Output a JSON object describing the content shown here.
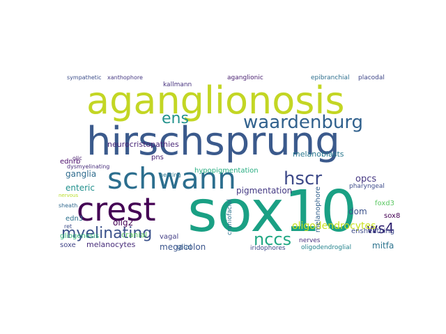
{
  "wordcloud": {
    "words": [
      {
        "text": "hirschsprung",
        "color": "#3b5a8c"
      },
      {
        "text": "aganglionosis",
        "color": "#c3d624"
      },
      {
        "text": "sox10",
        "color": "#1aa084"
      },
      {
        "text": "schwann",
        "color": "#2c6e8e"
      },
      {
        "text": "crest",
        "color": "#440154"
      },
      {
        "text": "waardenburg",
        "color": "#31618d"
      },
      {
        "text": "myelinating",
        "color": "#3b528b"
      },
      {
        "text": "hscr",
        "color": "#3e4a89"
      },
      {
        "text": "nccs",
        "color": "#22a884"
      },
      {
        "text": "ens",
        "color": "#22928c"
      },
      {
        "text": "ws4",
        "color": "#2d1e6e"
      },
      {
        "text": "oligodendrocytes",
        "color": "#c8e020"
      },
      {
        "text": "neurocristopathies",
        "color": "#482677"
      },
      {
        "text": "melanoblasts",
        "color": "#2a788e"
      },
      {
        "text": "ganglia",
        "color": "#2f6c8e"
      },
      {
        "text": "enteric",
        "color": "#21908d"
      },
      {
        "text": "pigmentation",
        "color": "#443983"
      },
      {
        "text": "megacolon",
        "color": "#3a548c"
      },
      {
        "text": "melanocytes",
        "color": "#472c7a"
      },
      {
        "text": "opcs",
        "color": "#453781"
      },
      {
        "text": "dom",
        "color": "#3b518b"
      },
      {
        "text": "mitfa",
        "color": "#2c738e"
      },
      {
        "text": "olig2",
        "color": "#440154"
      },
      {
        "text": "cranial",
        "color": "#5ec962"
      },
      {
        "text": "sox8",
        "color": "#440154"
      },
      {
        "text": "ednrb",
        "color": "#4a0c6b"
      },
      {
        "text": "edn3",
        "color": "#2c718e"
      },
      {
        "text": "glial",
        "color": "#35608d"
      },
      {
        "text": "soxe",
        "color": "#414487"
      },
      {
        "text": "iridophores",
        "color": "#3e4989"
      },
      {
        "text": "pns",
        "color": "#482475"
      },
      {
        "text": "hypopigmentation",
        "color": "#27ad81"
      },
      {
        "text": "foxd3",
        "color": "#5cc863"
      },
      {
        "text": "ensheathing",
        "color": "#3e4a89"
      },
      {
        "text": "gliogenesis",
        "color": "#35b779"
      },
      {
        "text": "oligodendroglial",
        "color": "#25848e"
      },
      {
        "text": "melanophore",
        "color": "#34618d"
      },
      {
        "text": "craniofacial",
        "color": "#2c728e"
      },
      {
        "text": "vagal",
        "color": "#433e85"
      },
      {
        "text": "pharyngeal",
        "color": "#3e4c8a"
      },
      {
        "text": "dysmyelinating",
        "color": "#472d7b"
      },
      {
        "text": "aganglionic",
        "color": "#481f70"
      },
      {
        "text": "epibranchial",
        "color": "#2e6f8e"
      },
      {
        "text": "placodal",
        "color": "#3f4788"
      },
      {
        "text": "kallmann",
        "color": "#46327e"
      },
      {
        "text": "sympathetic",
        "color": "#3d4e8a"
      },
      {
        "text": "xanthophore",
        "color": "#453882"
      },
      {
        "text": "olic",
        "color": "#481b6d"
      },
      {
        "text": "hearing",
        "color": "#2a768e"
      },
      {
        "text": "nerves",
        "color": "#472f7d"
      },
      {
        "text": "ret",
        "color": "#3d4d8a"
      },
      {
        "text": "sheath",
        "color": "#31688e"
      },
      {
        "text": "nervous",
        "color": "#b8de29"
      },
      {
        "text": "schwann",
        "color": "#1f9f88"
      }
    ]
  }
}
